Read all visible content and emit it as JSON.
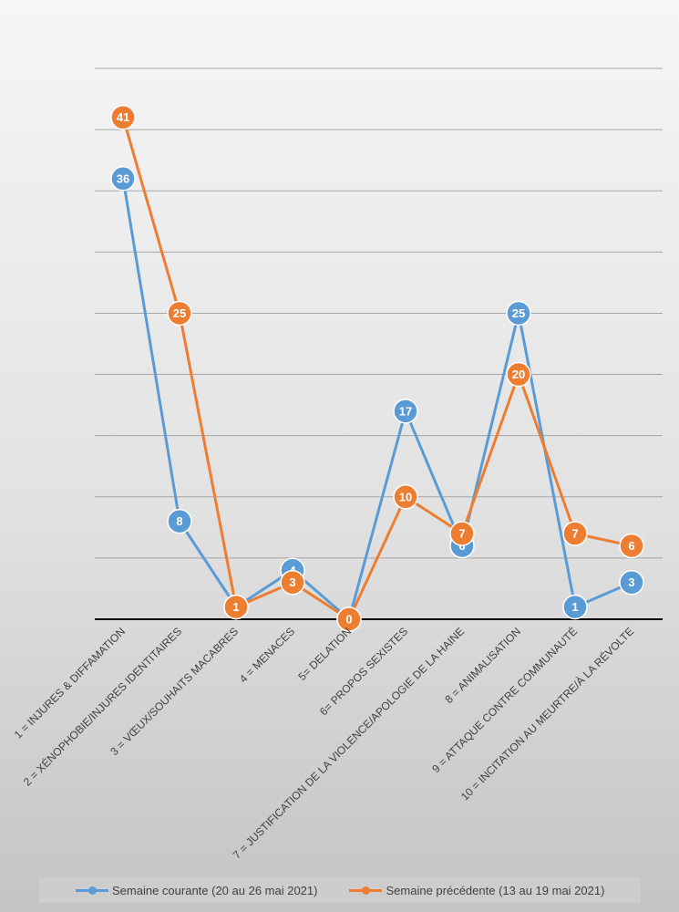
{
  "chart_data": {
    "type": "line",
    "categories": [
      "1 = INJURES & DIFFAMATION",
      "2 = XÉNOPHOBIE/INJURES IDENTITAIRES",
      "3 = VŒUX/SOUHAITS MACABRES",
      "4 = MENACES",
      "5= DELATION",
      "6= PROPOS SEXISTES",
      "7 = JUSTIFICATION DE LA VIOLENCE/APOLOGIE DE LA HAINE",
      "8 = ANIMALISATION",
      "9 = ATTAQUE CONTRE COMMUNAUTÉ",
      "10 = INCITATION AU MEURTRE/À LA RÉVOLTE"
    ],
    "series": [
      {
        "name": "Semaine courante (20 au 26 mai 2021)",
        "color": "#5b9bd5",
        "values": [
          36,
          8,
          1,
          4,
          0,
          17,
          6,
          25,
          1,
          3
        ]
      },
      {
        "name": "Semaine précédente (13 au 19 mai 2021)",
        "color": "#ed7d31",
        "values": [
          41,
          25,
          1,
          3,
          0,
          10,
          7,
          20,
          7,
          6
        ]
      }
    ],
    "ylim": [
      0,
      45
    ],
    "grid": true,
    "legend_position": "bottom"
  }
}
